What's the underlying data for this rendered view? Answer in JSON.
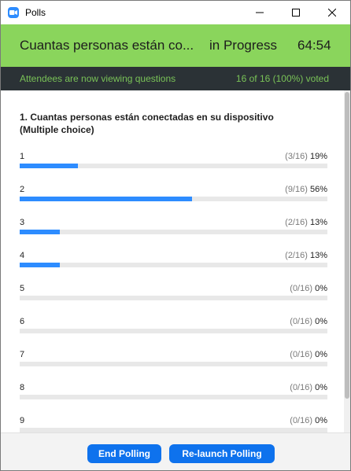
{
  "window": {
    "title": "Polls"
  },
  "header": {
    "poll_title": "Cuantas personas están co...",
    "status": "in Progress",
    "timer": "64:54"
  },
  "info_bar": {
    "left_text": "Attendees are now viewing questions",
    "right_text": "16 of 16 (100%) voted"
  },
  "question": {
    "text": "1. Cuantas personas están conectadas en su dispositivo (Multiple choice)",
    "options": [
      {
        "label": "1",
        "count": "(3/16)",
        "percent": "19%",
        "value": 19
      },
      {
        "label": "2",
        "count": "(9/16)",
        "percent": "56%",
        "value": 56
      },
      {
        "label": "3",
        "count": "(2/16)",
        "percent": "13%",
        "value": 13
      },
      {
        "label": "4",
        "count": "(2/16)",
        "percent": "13%",
        "value": 13
      },
      {
        "label": "5",
        "count": "(0/16)",
        "percent": "0%",
        "value": 0
      },
      {
        "label": "6",
        "count": "(0/16)",
        "percent": "0%",
        "value": 0
      },
      {
        "label": "7",
        "count": "(0/16)",
        "percent": "0%",
        "value": 0
      },
      {
        "label": "8",
        "count": "(0/16)",
        "percent": "0%",
        "value": 0
      },
      {
        "label": "9",
        "count": "(0/16)",
        "percent": "0%",
        "value": 0
      }
    ]
  },
  "footer": {
    "end_label": "End Polling",
    "relaunch_label": "Re-launch Polling"
  },
  "colors": {
    "header_green": "#8ad55c",
    "info_bar": "#2b3236",
    "info_text": "#79c257",
    "bar_fill": "#2d8cff",
    "button": "#0e72ed"
  }
}
